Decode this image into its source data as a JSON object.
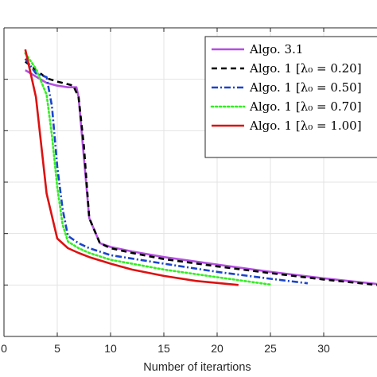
{
  "chart_data": {
    "type": "line",
    "xlabel": "Number of iterartions",
    "ylabel": "",
    "xlim": [
      0,
      35
    ],
    "yscale": "log",
    "ylim": [
      1e-05,
      10
    ],
    "xticks": [
      0,
      5,
      10,
      15,
      20,
      25,
      30
    ],
    "xtick_labels": [
      "0",
      "5",
      "10",
      "15",
      "20",
      "25",
      "30"
    ],
    "grid": true,
    "legend_position": "top-right",
    "series": [
      {
        "name": "Algo. 3.1",
        "color": "#b44fe0",
        "style": "solid",
        "x": [
          2,
          4,
          5,
          6,
          6.8,
          7,
          8,
          9,
          10,
          12,
          15,
          20,
          25,
          30,
          35
        ],
        "y": [
          1.5,
          0.85,
          0.75,
          0.7,
          0.7,
          0.45,
          0.002,
          0.00065,
          0.00055,
          0.00045,
          0.00035,
          0.00025,
          0.00018,
          0.000135,
          0.000105
        ]
      },
      {
        "name": "Algo. 1 [λ₀ = 0.20]",
        "color": "#000000",
        "style": "dashed",
        "x": [
          2,
          4,
          5,
          6,
          6.5,
          7,
          7.5,
          8,
          9,
          10,
          12,
          15,
          20,
          25,
          30,
          35
        ],
        "y": [
          2.2,
          1.05,
          0.9,
          0.8,
          0.75,
          0.45,
          0.05,
          0.002,
          0.00065,
          0.00052,
          0.00042,
          0.00032,
          0.00023,
          0.00017,
          0.000128,
          0.0001
        ]
      },
      {
        "name": "Algo. 1 [λ₀ = 0.50]",
        "color": "#1a44cc",
        "style": "dashdot",
        "x": [
          2,
          3,
          4,
          4.5,
          5,
          5.5,
          6,
          7,
          8,
          10,
          15,
          20,
          25,
          28.5
        ],
        "y": [
          2.5,
          1.3,
          1.1,
          0.3,
          0.02,
          0.003,
          0.0009,
          0.00065,
          0.00052,
          0.00038,
          0.00026,
          0.00018,
          0.000132,
          0.000108
        ]
      },
      {
        "name": "Algo. 1 [λ₀ = 0.70]",
        "color": "#33ee22",
        "style": "dotted",
        "x": [
          2,
          3,
          4,
          4.5,
          5,
          5.5,
          6,
          7,
          8,
          10,
          15,
          20,
          25
        ],
        "y": [
          3.2,
          1.6,
          0.5,
          0.08,
          0.008,
          0.0015,
          0.0007,
          0.00052,
          0.00042,
          0.00031,
          0.0002,
          0.000142,
          0.000102
        ]
      },
      {
        "name": "Algo. 1 [λ₀ = 1.00]",
        "color": "#dd1111",
        "style": "solid",
        "x": [
          2,
          3,
          4,
          5,
          6,
          7,
          8,
          10,
          12,
          15,
          18,
          22
        ],
        "y": [
          3.8,
          0.45,
          0.006,
          0.0008,
          0.00052,
          0.00042,
          0.00035,
          0.00026,
          0.0002,
          0.00015,
          0.00012,
          0.0001
        ]
      }
    ]
  }
}
